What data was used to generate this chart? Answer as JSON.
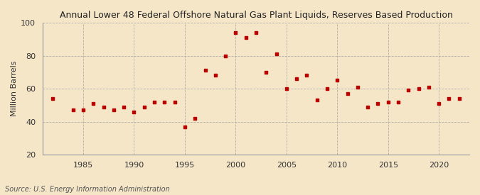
{
  "title": "Annual Lower 48 Federal Offshore Natural Gas Plant Liquids, Reserves Based Production",
  "ylabel": "Million Barrels",
  "source": "Source: U.S. Energy Information Administration",
  "background_color": "#f5e6c8",
  "plot_background_color": "#f5e6c8",
  "grid_color": "#aaaaaa",
  "marker_color": "#bb0000",
  "years": [
    1982,
    1984,
    1985,
    1986,
    1987,
    1988,
    1989,
    1990,
    1991,
    1992,
    1993,
    1994,
    1995,
    1996,
    1997,
    1998,
    1999,
    2000,
    2001,
    2002,
    2003,
    2004,
    2005,
    2006,
    2007,
    2008,
    2009,
    2010,
    2011,
    2012,
    2013,
    2014,
    2015,
    2016,
    2017,
    2018,
    2019,
    2020,
    2021,
    2022
  ],
  "values": [
    54,
    47,
    47,
    51,
    49,
    47,
    49,
    46,
    49,
    52,
    52,
    52,
    37,
    42,
    71,
    68,
    80,
    94,
    91,
    94,
    70,
    81,
    60,
    66,
    68,
    53,
    60,
    65,
    57,
    61,
    49,
    51,
    52,
    52,
    59,
    60,
    61,
    51,
    54,
    54
  ],
  "xlim": [
    1981,
    2023
  ],
  "ylim": [
    20,
    100
  ],
  "xticks": [
    1985,
    1990,
    1995,
    2000,
    2005,
    2010,
    2015,
    2020
  ],
  "yticks": [
    20,
    40,
    60,
    80,
    100
  ],
  "title_fontsize": 9,
  "axis_fontsize": 8,
  "source_fontsize": 7
}
